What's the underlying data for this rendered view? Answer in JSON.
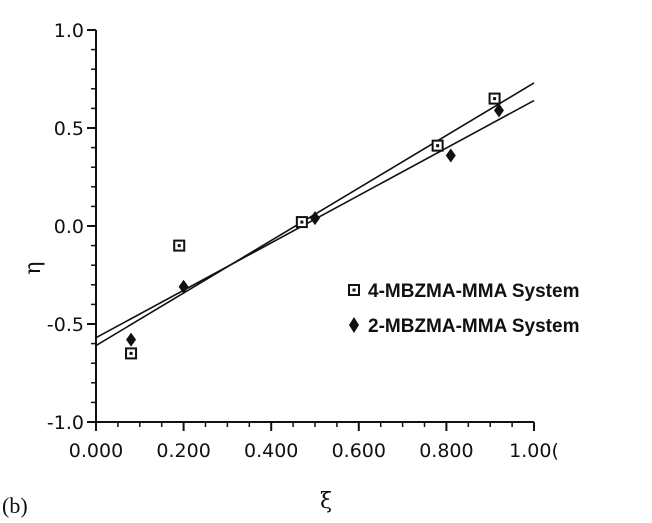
{
  "chart_data": {
    "type": "scatter",
    "panel_label": "(b)",
    "xlabel": "ξ",
    "ylabel": "η",
    "xlim": [
      0.0,
      1.0
    ],
    "ylim": [
      -1.0,
      1.0
    ],
    "x_ticks": [
      0.0,
      0.2,
      0.4,
      0.6,
      0.8,
      1.0
    ],
    "x_tick_labels": [
      "0.000",
      "0.200",
      "0.400",
      "0.600",
      "0.800",
      "1.00("
    ],
    "y_ticks": [
      1.0,
      0.5,
      0.0,
      -0.5,
      -1.0
    ],
    "y_tick_labels": [
      "1.0",
      "0.5",
      "0.0",
      "-0.5",
      "-1.0"
    ],
    "grid": false,
    "legend_position": "right",
    "series": [
      {
        "name": "4-MBZMA-MMA System",
        "marker": "open-square",
        "color": "#111111",
        "points": [
          {
            "x": 0.08,
            "y": -0.65
          },
          {
            "x": 0.19,
            "y": -0.1
          },
          {
            "x": 0.47,
            "y": 0.02
          },
          {
            "x": 0.78,
            "y": 0.41
          },
          {
            "x": 0.91,
            "y": 0.65
          }
        ],
        "fit_line": {
          "x": [
            0.0,
            1.0
          ],
          "y": [
            -0.61,
            0.73
          ]
        }
      },
      {
        "name": "2-MBZMA-MMA System",
        "marker": "filled-diamond",
        "color": "#111111",
        "points": [
          {
            "x": 0.08,
            "y": -0.58
          },
          {
            "x": 0.2,
            "y": -0.31
          },
          {
            "x": 0.5,
            "y": 0.04
          },
          {
            "x": 0.81,
            "y": 0.36
          },
          {
            "x": 0.92,
            "y": 0.59
          }
        ],
        "fit_line": {
          "x": [
            0.0,
            1.0
          ],
          "y": [
            -0.57,
            0.64
          ]
        }
      }
    ]
  }
}
